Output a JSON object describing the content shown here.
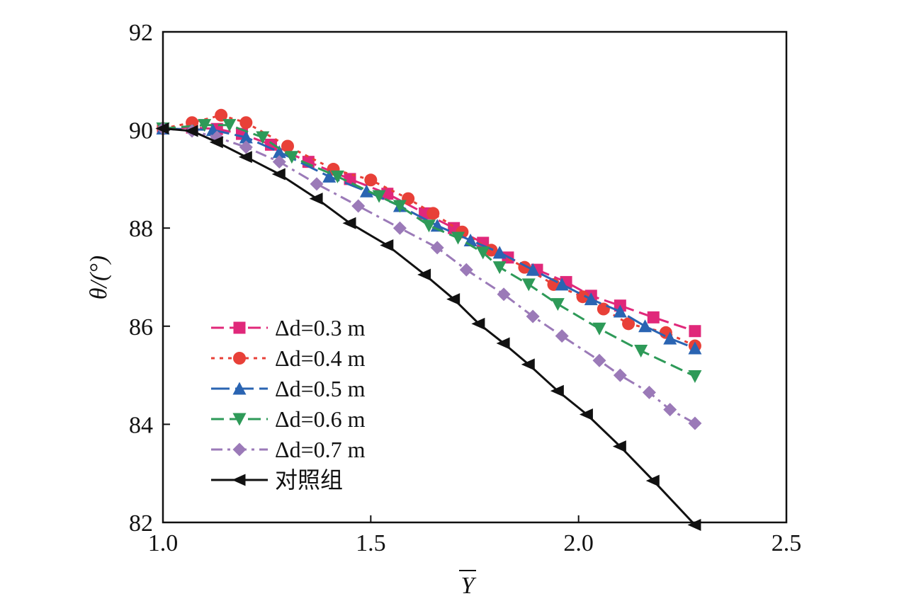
{
  "chart_data": {
    "type": "line",
    "xlabel": "Y",
    "ylabel": "θ/(°)",
    "xlim": [
      1.0,
      2.5
    ],
    "ylim": [
      82,
      92
    ],
    "xticks": [
      1.0,
      1.5,
      2.0,
      2.5
    ],
    "xtick_labels": [
      "1.0",
      "1.5",
      "2.0",
      "2.5"
    ],
    "yticks": [
      82,
      84,
      86,
      88,
      90,
      92
    ],
    "ytick_labels": [
      "82",
      "84",
      "86",
      "88",
      "90",
      "92"
    ],
    "grid": false,
    "legend_position": "bottom-left",
    "series": [
      {
        "name": "Δd=0.3 m",
        "color": "#e0287a",
        "marker": "square",
        "dash": "dash",
        "x": [
          1.0,
          1.07,
          1.13,
          1.19,
          1.26,
          1.35,
          1.45,
          1.54,
          1.63,
          1.7,
          1.77,
          1.83,
          1.9,
          1.97,
          2.03,
          2.1,
          2.18,
          2.28
        ],
        "y": [
          90.03,
          90.05,
          90.02,
          89.92,
          89.7,
          89.35,
          89.0,
          88.7,
          88.3,
          88.0,
          87.7,
          87.4,
          87.15,
          86.9,
          86.62,
          86.42,
          86.18,
          85.9
        ]
      },
      {
        "name": "Δd=0.4 m",
        "color": "#e84038",
        "marker": "circle",
        "dash": "dot",
        "x": [
          1.0,
          1.07,
          1.14,
          1.2,
          1.3,
          1.41,
          1.5,
          1.59,
          1.65,
          1.72,
          1.79,
          1.87,
          1.94,
          2.01,
          2.06,
          2.12,
          2.21,
          2.28
        ],
        "y": [
          90.03,
          90.15,
          90.3,
          90.15,
          89.67,
          89.2,
          88.98,
          88.6,
          88.3,
          87.92,
          87.55,
          87.2,
          86.85,
          86.6,
          86.35,
          86.05,
          85.87,
          85.6
        ]
      },
      {
        "name": "Δd=0.5 m",
        "color": "#2a64b2",
        "marker": "triangle-up",
        "dash": "longdash",
        "x": [
          1.0,
          1.12,
          1.2,
          1.28,
          1.4,
          1.49,
          1.57,
          1.66,
          1.74,
          1.81,
          1.89,
          1.96,
          2.03,
          2.1,
          2.16,
          2.22,
          2.28
        ],
        "y": [
          90.03,
          90.0,
          89.85,
          89.55,
          89.05,
          88.75,
          88.45,
          88.05,
          87.75,
          87.5,
          87.15,
          86.85,
          86.55,
          86.3,
          86.0,
          85.75,
          85.55
        ]
      },
      {
        "name": "Δd=0.6 m",
        "color": "#2e9a58",
        "marker": "triangle-down",
        "dash": "dash",
        "x": [
          1.0,
          1.1,
          1.16,
          1.24,
          1.31,
          1.42,
          1.52,
          1.57,
          1.64,
          1.71,
          1.77,
          1.81,
          1.88,
          1.95,
          2.05,
          2.15,
          2.28
        ],
        "y": [
          90.03,
          90.1,
          90.1,
          89.85,
          89.45,
          89.05,
          88.65,
          88.45,
          88.05,
          87.8,
          87.5,
          87.2,
          86.85,
          86.45,
          85.95,
          85.5,
          84.98
        ]
      },
      {
        "name": "Δd=0.7 m",
        "color": "#9b7ab8",
        "marker": "diamond",
        "dash": "dashdot",
        "x": [
          1.0,
          1.07,
          1.13,
          1.2,
          1.28,
          1.37,
          1.47,
          1.57,
          1.66,
          1.73,
          1.82,
          1.89,
          1.96,
          2.05,
          2.1,
          2.17,
          2.22,
          2.28
        ],
        "y": [
          90.03,
          89.98,
          89.85,
          89.65,
          89.35,
          88.9,
          88.45,
          88.0,
          87.6,
          87.15,
          86.65,
          86.2,
          85.8,
          85.3,
          85.0,
          84.65,
          84.3,
          84.02
        ]
      },
      {
        "name": "对照组",
        "color": "#111111",
        "marker": "triangle-left",
        "dash": "solid",
        "x": [
          1.0,
          1.07,
          1.13,
          1.2,
          1.28,
          1.37,
          1.45,
          1.54,
          1.63,
          1.7,
          1.76,
          1.82,
          1.88,
          1.95,
          2.02,
          2.1,
          2.18,
          2.28
        ],
        "y": [
          90.03,
          89.98,
          89.75,
          89.45,
          89.1,
          88.6,
          88.1,
          87.65,
          87.05,
          86.55,
          86.05,
          85.65,
          85.22,
          84.68,
          84.2,
          83.55,
          82.85,
          81.95
        ]
      }
    ]
  }
}
